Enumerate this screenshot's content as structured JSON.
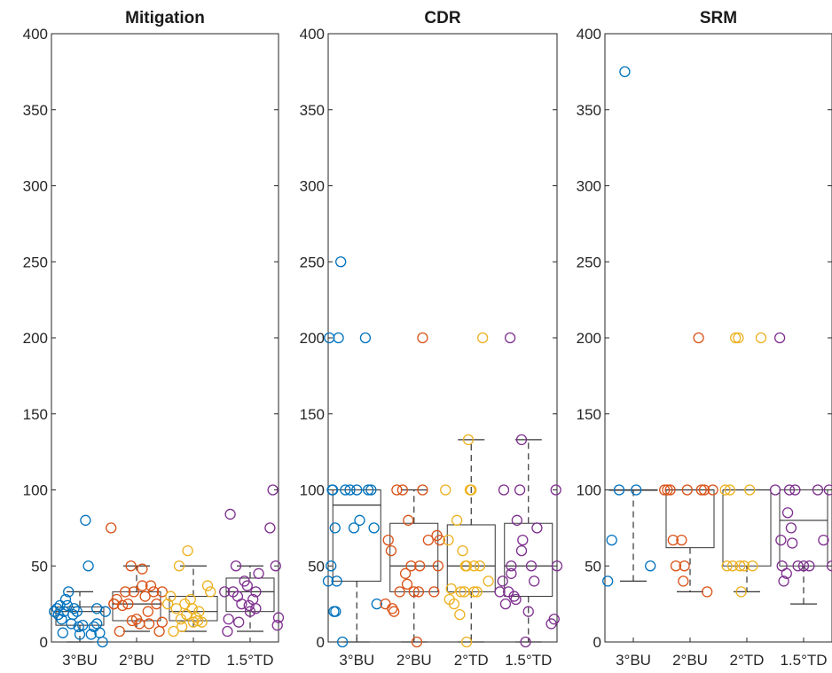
{
  "colors": {
    "3°BU": "#0072BD",
    "2°BU": "#D95319",
    "2°TD": "#EDB120",
    "1.5°TD": "#7E2F8E"
  },
  "chart_data": [
    {
      "type": "box",
      "title": "Mitigation",
      "categories": [
        "3°BU",
        "2°BU",
        "2°TD",
        "1.5°TD"
      ],
      "ylim": [
        0,
        400
      ],
      "yticks": [
        0,
        50,
        100,
        150,
        200,
        250,
        300,
        350,
        400
      ],
      "ytick_labels": [
        "0",
        "50",
        "100",
        "150",
        "200",
        "250",
        "300",
        "350",
        "400"
      ],
      "boxes": [
        {
          "category": "3°BU",
          "q1": 11,
          "median": 20,
          "q3": 23,
          "whisker_low": 0,
          "whisker_high": 33
        },
        {
          "category": "2°BU",
          "q1": 14,
          "median": 25,
          "q3": 33,
          "whisker_low": 7,
          "whisker_high": 50
        },
        {
          "category": "2°TD",
          "q1": 14,
          "median": 20,
          "q3": 30,
          "whisker_low": 7,
          "whisker_high": 50
        },
        {
          "category": "1.5°TD",
          "q1": 20,
          "median": 33,
          "q3": 42,
          "whisker_low": 7,
          "whisker_high": 50
        }
      ],
      "points": {
        "3°BU": [
          [
            0.55,
            20
          ],
          [
            0.6,
            22
          ],
          [
            0.62,
            18
          ],
          [
            0.65,
            24
          ],
          [
            0.68,
            15
          ],
          [
            0.7,
            6
          ],
          [
            0.72,
            20
          ],
          [
            0.75,
            28
          ],
          [
            0.78,
            24
          ],
          [
            0.8,
            33
          ],
          [
            0.85,
            12
          ],
          [
            0.9,
            22
          ],
          [
            0.95,
            20
          ],
          [
            1.0,
            5
          ],
          [
            1.05,
            11
          ],
          [
            1.1,
            80
          ],
          [
            1.15,
            50
          ],
          [
            1.2,
            5
          ],
          [
            1.25,
            10
          ],
          [
            1.3,
            22
          ],
          [
            1.3,
            12
          ],
          [
            1.35,
            6
          ],
          [
            1.4,
            0
          ],
          [
            1.45,
            20
          ],
          [
            0.88,
            18
          ],
          [
            0.98,
            10
          ]
        ],
        "2°BU": [
          [
            1.55,
            75
          ],
          [
            1.6,
            25
          ],
          [
            1.65,
            28
          ],
          [
            1.7,
            7
          ],
          [
            1.75,
            24
          ],
          [
            1.8,
            33
          ],
          [
            1.85,
            25
          ],
          [
            1.9,
            50
          ],
          [
            1.95,
            33
          ],
          [
            2.0,
            15
          ],
          [
            2.05,
            12
          ],
          [
            2.1,
            37
          ],
          [
            2.15,
            30
          ],
          [
            2.2,
            20
          ],
          [
            2.25,
            37
          ],
          [
            2.3,
            33
          ],
          [
            2.35,
            25
          ],
          [
            2.4,
            7
          ],
          [
            2.45,
            13
          ],
          [
            2.45,
            33
          ],
          [
            1.92,
            14
          ],
          [
            2.1,
            48
          ],
          [
            2.22,
            12
          ],
          [
            1.6,
            25
          ]
        ],
        "2°TD": [
          [
            2.55,
            25
          ],
          [
            2.6,
            30
          ],
          [
            2.65,
            7
          ],
          [
            2.7,
            22
          ],
          [
            2.75,
            50
          ],
          [
            2.8,
            10
          ],
          [
            2.85,
            25
          ],
          [
            2.9,
            60
          ],
          [
            2.95,
            28
          ],
          [
            3.0,
            13
          ],
          [
            3.05,
            16
          ],
          [
            3.1,
            20
          ],
          [
            3.15,
            13
          ],
          [
            3.25,
            37
          ],
          [
            3.3,
            33
          ],
          [
            2.78,
            15
          ],
          [
            2.88,
            18
          ],
          [
            2.98,
            22
          ],
          [
            3.08,
            14
          ]
        ],
        "1.5°TD": [
          [
            3.55,
            33
          ],
          [
            3.6,
            7
          ],
          [
            3.62,
            15
          ],
          [
            3.65,
            84
          ],
          [
            3.7,
            33
          ],
          [
            3.75,
            50
          ],
          [
            3.8,
            13
          ],
          [
            3.85,
            25
          ],
          [
            3.9,
            40
          ],
          [
            3.95,
            37
          ],
          [
            4.0,
            20
          ],
          [
            4.05,
            28
          ],
          [
            4.1,
            33
          ],
          [
            4.15,
            45
          ],
          [
            4.35,
            75
          ],
          [
            4.4,
            100
          ],
          [
            4.45,
            50
          ],
          [
            4.48,
            11
          ],
          [
            4.5,
            16
          ],
          [
            3.78,
            30
          ],
          [
            3.98,
            24
          ],
          [
            4.1,
            22
          ]
        ]
      }
    },
    {
      "type": "box",
      "title": "CDR",
      "categories": [
        "3°BU",
        "2°BU",
        "2°TD",
        "1.5°TD"
      ],
      "ylim": [
        0,
        400
      ],
      "yticks": [
        0,
        50,
        100,
        150,
        200,
        250,
        300,
        350,
        400
      ],
      "ytick_labels": [
        "0",
        "50",
        "100",
        "150",
        "200",
        "250",
        "300",
        "350",
        "400"
      ],
      "boxes": [
        {
          "category": "3°BU",
          "q1": 40,
          "median": 90,
          "q3": 100,
          "whisker_low": 0,
          "whisker_high": 100
        },
        {
          "category": "2°BU",
          "q1": 33,
          "median": 50,
          "q3": 78,
          "whisker_low": 0,
          "whisker_high": 100
        },
        {
          "category": "2°TD",
          "q1": 33,
          "median": 50,
          "q3": 77,
          "whisker_low": 0,
          "whisker_high": 133
        },
        {
          "category": "1.5°TD",
          "q1": 30,
          "median": 50,
          "q3": 78,
          "whisker_low": 0,
          "whisker_high": 133
        }
      ],
      "points": {
        "3°BU": [
          [
            0.5,
            40
          ],
          [
            0.52,
            200
          ],
          [
            0.55,
            50
          ],
          [
            0.58,
            100
          ],
          [
            0.6,
            20
          ],
          [
            0.62,
            75
          ],
          [
            0.65,
            40
          ],
          [
            0.68,
            200
          ],
          [
            0.72,
            250
          ],
          [
            0.75,
            0
          ],
          [
            0.8,
            100
          ],
          [
            0.88,
            100
          ],
          [
            0.95,
            75
          ],
          [
            1.0,
            100
          ],
          [
            1.05,
            80
          ],
          [
            1.15,
            200
          ],
          [
            1.2,
            100
          ],
          [
            1.25,
            100
          ],
          [
            1.3,
            75
          ],
          [
            1.35,
            25
          ],
          [
            0.57,
            100
          ],
          [
            0.63,
            20
          ]
        ],
        "2°BU": [
          [
            1.5,
            25
          ],
          [
            1.55,
            67
          ],
          [
            1.6,
            60
          ],
          [
            1.62,
            22
          ],
          [
            1.65,
            20
          ],
          [
            1.7,
            100
          ],
          [
            1.75,
            33
          ],
          [
            1.8,
            100
          ],
          [
            1.85,
            45
          ],
          [
            1.9,
            80
          ],
          [
            1.95,
            50
          ],
          [
            2.0,
            33
          ],
          [
            2.05,
            0
          ],
          [
            2.1,
            50
          ],
          [
            2.15,
            100
          ],
          [
            2.15,
            200
          ],
          [
            2.25,
            67
          ],
          [
            2.35,
            33
          ],
          [
            2.42,
            50
          ],
          [
            2.4,
            70
          ],
          [
            2.45,
            67
          ],
          [
            1.88,
            38
          ],
          [
            2.08,
            33
          ]
        ],
        "2°TD": [
          [
            2.55,
            100
          ],
          [
            2.6,
            67
          ],
          [
            2.62,
            28
          ],
          [
            2.65,
            35
          ],
          [
            2.7,
            25
          ],
          [
            2.75,
            80
          ],
          [
            2.8,
            18
          ],
          [
            2.85,
            60
          ],
          [
            2.88,
            33
          ],
          [
            2.9,
            50
          ],
          [
            2.92,
            50
          ],
          [
            2.95,
            133
          ],
          [
            3.0,
            100
          ],
          [
            3.05,
            50
          ],
          [
            3.1,
            33
          ],
          [
            3.15,
            50
          ],
          [
            3.2,
            200
          ],
          [
            3.3,
            40
          ],
          [
            2.82,
            33
          ],
          [
            2.92,
            0
          ],
          [
            2.98,
            100
          ],
          [
            3.05,
            33
          ]
        ],
        "1.5°TD": [
          [
            3.5,
            33
          ],
          [
            3.55,
            40
          ],
          [
            3.57,
            100
          ],
          [
            3.6,
            25
          ],
          [
            3.65,
            33
          ],
          [
            3.68,
            200
          ],
          [
            3.7,
            50
          ],
          [
            3.75,
            30
          ],
          [
            3.78,
            28
          ],
          [
            3.8,
            80
          ],
          [
            3.85,
            100
          ],
          [
            3.88,
            133
          ],
          [
            3.9,
            67
          ],
          [
            3.95,
            0
          ],
          [
            4.0,
            20
          ],
          [
            4.05,
            50
          ],
          [
            4.1,
            40
          ],
          [
            4.15,
            75
          ],
          [
            4.4,
            12
          ],
          [
            4.45,
            15
          ],
          [
            4.48,
            100
          ],
          [
            4.5,
            50
          ],
          [
            3.7,
            45
          ],
          [
            3.88,
            60
          ]
        ]
      }
    },
    {
      "type": "box",
      "title": "SRM",
      "categories": [
        "3°BU",
        "2°BU",
        "2°TD",
        "1.5°TD"
      ],
      "ylim": [
        0,
        400
      ],
      "yticks": [
        0,
        50,
        100,
        150,
        200,
        250,
        300,
        350,
        400
      ],
      "ytick_labels": [
        "0",
        "50",
        "100",
        "150",
        "200",
        "250",
        "300",
        "350",
        "400"
      ],
      "boxes": [
        {
          "category": "3°BU",
          "q1": 100,
          "median": 100,
          "q3": 100,
          "whisker_low": 40,
          "whisker_high": 100
        },
        {
          "category": "2°BU",
          "q1": 62,
          "median": 100,
          "q3": 100,
          "whisker_low": 33,
          "whisker_high": 100
        },
        {
          "category": "2°TD",
          "q1": 50,
          "median": 100,
          "q3": 100,
          "whisker_low": 33,
          "whisker_high": 100
        },
        {
          "category": "1.5°TD",
          "q1": 50,
          "median": 80,
          "q3": 100,
          "whisker_low": 25,
          "whisker_high": 100
        }
      ],
      "points": {
        "3°BU": [
          [
            0.55,
            40
          ],
          [
            0.62,
            67
          ],
          [
            0.75,
            100
          ],
          [
            0.85,
            375
          ],
          [
            1.05,
            100
          ],
          [
            1.3,
            50
          ]
        ],
        "2°BU": [
          [
            1.55,
            100
          ],
          [
            1.6,
            100
          ],
          [
            1.7,
            67
          ],
          [
            1.75,
            50
          ],
          [
            1.85,
            67
          ],
          [
            1.88,
            40
          ],
          [
            1.9,
            50
          ],
          [
            1.95,
            100
          ],
          [
            2.15,
            200
          ],
          [
            2.2,
            100
          ],
          [
            2.25,
            100
          ],
          [
            2.3,
            33
          ],
          [
            2.4,
            100
          ],
          [
            1.65,
            100
          ]
        ],
        "2°TD": [
          [
            2.62,
            100
          ],
          [
            2.65,
            50
          ],
          [
            2.7,
            100
          ],
          [
            2.75,
            50
          ],
          [
            2.8,
            200
          ],
          [
            2.85,
            200
          ],
          [
            2.88,
            50
          ],
          [
            2.9,
            33
          ],
          [
            2.95,
            50
          ],
          [
            3.05,
            100
          ],
          [
            3.1,
            50
          ],
          [
            3.25,
            200
          ]
        ],
        "1.5°TD": [
          [
            3.5,
            100
          ],
          [
            3.58,
            200
          ],
          [
            3.6,
            67
          ],
          [
            3.62,
            50
          ],
          [
            3.65,
            40
          ],
          [
            3.7,
            45
          ],
          [
            3.72,
            85
          ],
          [
            3.75,
            100
          ],
          [
            3.78,
            75
          ],
          [
            3.8,
            65
          ],
          [
            3.85,
            100
          ],
          [
            3.9,
            50
          ],
          [
            4.0,
            50
          ],
          [
            4.1,
            50
          ],
          [
            4.25,
            100
          ],
          [
            4.35,
            67
          ],
          [
            4.45,
            100
          ],
          [
            4.5,
            50
          ]
        ]
      }
    }
  ]
}
